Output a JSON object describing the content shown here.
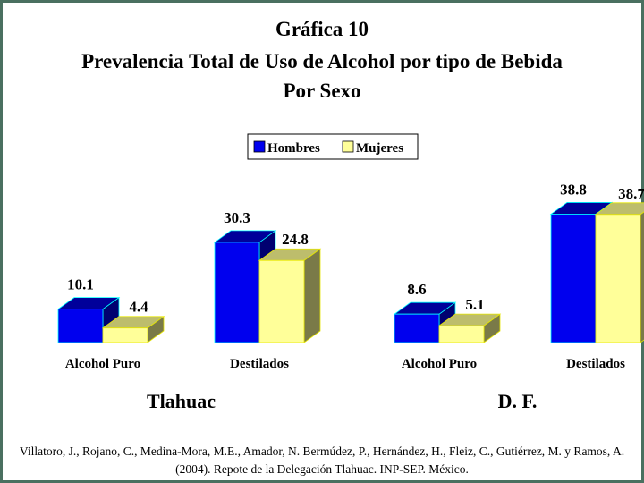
{
  "chart_data": {
    "type": "bar",
    "title_lines": [
      "Gráfica 10",
      "Prevalencia Total de Uso de Alcohol por tipo de Bebida",
      "Por Sexo"
    ],
    "legend": [
      "Hombres",
      "Mujeres"
    ],
    "legend_placement": "top-center",
    "series_colors": {
      "Hombres": {
        "front": "#0000ee",
        "top": "#00009a",
        "side": "#000070",
        "edge": "#00ffff"
      },
      "Mujeres": {
        "front": "#ffff99",
        "top": "#bdbd6c",
        "side": "#7a7a48",
        "edge": "#e6e600"
      }
    },
    "three_d": true,
    "groups": [
      {
        "name": "Tlahuac",
        "categories": [
          "Alcohol Puro",
          "Destilados"
        ],
        "series": [
          {
            "name": "Hombres",
            "values": [
              10.1,
              30.3
            ]
          },
          {
            "name": "Mujeres",
            "values": [
              4.4,
              24.8
            ]
          }
        ]
      },
      {
        "name": "D. F.",
        "categories": [
          "Alcohol Puro",
          "Destilados"
        ],
        "series": [
          {
            "name": "Hombres",
            "values": [
              8.6,
              38.8
            ]
          },
          {
            "name": "Mujeres",
            "values": [
              5.1,
              38.7
            ]
          }
        ]
      }
    ],
    "value_labels": true,
    "xlabel": "",
    "ylabel": "",
    "ylim": [
      0,
      40
    ],
    "grid": false
  },
  "citation": "Villatoro, J., Rojano, C., Medina-Mora, M.E., Amador, N. Bermúdez, P., Hernández, H., Fleiz, C., Gutiérrez, M. y Ramos, A. (2004). Repote de la Delegación Tlahuac. INP-SEP. México."
}
